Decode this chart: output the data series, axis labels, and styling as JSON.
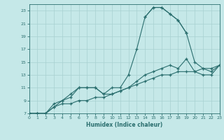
{
  "xlabel": "Humidex (Indice chaleur)",
  "bg_color": "#c5e8e8",
  "grid_color": "#a8d0d0",
  "line_color": "#2a6e6e",
  "xlim": [
    0,
    23
  ],
  "ylim": [
    7,
    24
  ],
  "xticks": [
    0,
    1,
    2,
    3,
    4,
    5,
    6,
    7,
    8,
    9,
    10,
    11,
    12,
    13,
    14,
    15,
    16,
    17,
    18,
    19,
    20,
    21,
    22,
    23
  ],
  "yticks": [
    7,
    9,
    11,
    13,
    15,
    17,
    19,
    21,
    23
  ],
  "line_peak": {
    "x": [
      0,
      1,
      2,
      3,
      4,
      5,
      6,
      7,
      8,
      9,
      10,
      11,
      12,
      13,
      14,
      15,
      16,
      17,
      18,
      19
    ],
    "y": [
      7,
      7,
      7,
      8,
      9,
      10,
      11,
      11,
      11,
      10,
      11,
      11,
      13,
      17,
      22,
      23.5,
      23.5,
      22.5,
      21.5,
      19.5
    ]
  },
  "line_peak2": {
    "x": [
      14,
      15,
      16,
      17,
      18,
      19,
      20,
      21,
      22,
      23
    ],
    "y": [
      22,
      23.5,
      23.5,
      22.5,
      21.5,
      19.5,
      15,
      14,
      13.5,
      14.5
    ]
  },
  "line_mid": {
    "x": [
      0,
      1,
      2,
      3,
      4,
      5,
      6,
      7,
      8,
      9,
      10,
      11,
      12,
      13,
      14,
      15,
      16,
      17,
      18,
      19,
      20,
      21,
      22,
      23
    ],
    "y": [
      7,
      7,
      7,
      8.5,
      9,
      9.5,
      11,
      11,
      11,
      10,
      10,
      10.5,
      11,
      12,
      13,
      13.5,
      14,
      14.5,
      14,
      15.5,
      13.5,
      13,
      13,
      14.5
    ]
  },
  "line_low": {
    "x": [
      0,
      1,
      2,
      3,
      4,
      5,
      6,
      7,
      8,
      9,
      10,
      11,
      12,
      13,
      14,
      15,
      16,
      17,
      18,
      19,
      20,
      21,
      22,
      23
    ],
    "y": [
      7,
      7,
      7,
      8,
      8.5,
      8.5,
      9,
      9,
      9.5,
      9.5,
      10,
      10.5,
      11,
      11.5,
      12,
      12.5,
      13,
      13,
      13.5,
      13.5,
      13.5,
      14,
      14,
      14.5
    ]
  }
}
